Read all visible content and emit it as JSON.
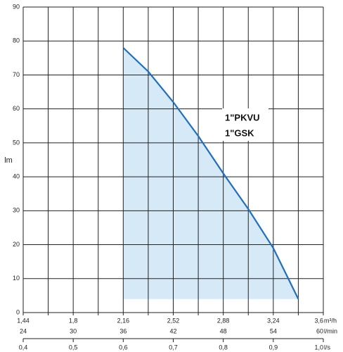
{
  "chart_data": {
    "type": "line",
    "legend_lines": [
      "1\"PKVU",
      "1\"GSK"
    ],
    "y_label": "lm",
    "x_units": "m³/h",
    "x2_units": "l/min",
    "x3_units": "l/s",
    "x": [
      2.16,
      2.34,
      2.52,
      2.7,
      2.88,
      3.06,
      3.24,
      3.42
    ],
    "series": [
      {
        "color": "#1f6fc0",
        "fill": "#d6e9f7",
        "values": [
          78,
          71,
          62,
          52,
          41,
          30.5,
          19,
          4
        ]
      }
    ],
    "xlim": [
      1.44,
      3.6
    ],
    "xticks": [
      {
        "value": 1.44,
        "label": "1,44"
      },
      {
        "value": 1.8,
        "label": "1,8"
      },
      {
        "value": 2.16,
        "label": "2,16"
      },
      {
        "value": 2.52,
        "label": "2,52"
      },
      {
        "value": 2.88,
        "label": "2,88"
      },
      {
        "value": 3.24,
        "label": "3,24"
      },
      {
        "value": 3.6,
        "label": "3,6"
      }
    ],
    "x2lim": [
      24,
      60
    ],
    "x2ticks": [
      24,
      30,
      36,
      42,
      48,
      54,
      60
    ],
    "x3lim": [
      0.4,
      1.0
    ],
    "x3ticks": [
      {
        "value": 0.4,
        "label": "0,4"
      },
      {
        "value": 0.5,
        "label": "0,5"
      },
      {
        "value": 0.6,
        "label": "0,6"
      },
      {
        "value": 0.7,
        "label": "0,7"
      },
      {
        "value": 0.8,
        "label": "0,8"
      },
      {
        "value": 0.9,
        "label": "0,9"
      },
      {
        "value": 1.0,
        "label": "1,0"
      }
    ],
    "ylim": [
      0,
      90
    ],
    "yticks": [
      0,
      10,
      20,
      30,
      40,
      50,
      60,
      70,
      80,
      90
    ],
    "grid": true
  }
}
